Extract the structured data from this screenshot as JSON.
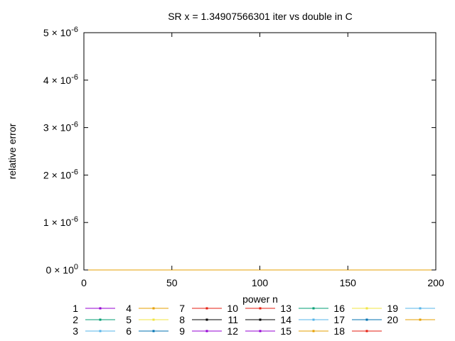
{
  "chart_data": {
    "type": "line",
    "title": "SR x = 1.34907566301 iter vs double in C",
    "xlabel": "power n",
    "ylabel": "relative error",
    "xlim": [
      0,
      200
    ],
    "ylim": [
      0,
      5e-06
    ],
    "x_ticks": [
      {
        "value": 0,
        "label": "0"
      },
      {
        "value": 50,
        "label": "50"
      },
      {
        "value": 100,
        "label": "100"
      },
      {
        "value": 150,
        "label": "150"
      },
      {
        "value": 200,
        "label": "200"
      }
    ],
    "y_ticks": [
      {
        "value": 0,
        "mant": "0 × 10",
        "exp": "0"
      },
      {
        "value": 1e-06,
        "mant": "1 × 10",
        "exp": "-6"
      },
      {
        "value": 2e-06,
        "mant": "2 × 10",
        "exp": "-6"
      },
      {
        "value": 3e-06,
        "mant": "3 × 10",
        "exp": "-6"
      },
      {
        "value": 4e-06,
        "mant": "4 × 10",
        "exp": "-6"
      },
      {
        "value": 5e-06,
        "mant": "5 × 10",
        "exp": "-6"
      }
    ],
    "grid": false,
    "legend_position": "below",
    "x": [
      0,
      200
    ],
    "series": [
      {
        "name": "1",
        "color": "#9400d3",
        "values": [
          0,
          0
        ]
      },
      {
        "name": "2",
        "color": "#009e73",
        "values": [
          0,
          0
        ]
      },
      {
        "name": "3",
        "color": "#56b4e9",
        "values": [
          0,
          0
        ]
      },
      {
        "name": "4",
        "color": "#e69f00",
        "values": [
          0,
          0
        ]
      },
      {
        "name": "5",
        "color": "#f0e442",
        "values": [
          0,
          0
        ]
      },
      {
        "name": "6",
        "color": "#0072b2",
        "values": [
          0,
          0
        ]
      },
      {
        "name": "7",
        "color": "#e51e10",
        "values": [
          0,
          0
        ]
      },
      {
        "name": "8",
        "color": "#000000",
        "values": [
          0,
          0
        ]
      },
      {
        "name": "9",
        "color": "#9400d3",
        "values": [
          0,
          0
        ]
      },
      {
        "name": "10",
        "color": "#e51e10",
        "values": [
          0,
          0
        ]
      },
      {
        "name": "11",
        "color": "#000000",
        "values": [
          0,
          0
        ]
      },
      {
        "name": "12",
        "color": "#9400d3",
        "values": [
          0,
          0
        ]
      },
      {
        "name": "13",
        "color": "#009e73",
        "values": [
          0,
          0
        ]
      },
      {
        "name": "14",
        "color": "#56b4e9",
        "values": [
          0,
          0
        ]
      },
      {
        "name": "15",
        "color": "#e69f00",
        "values": [
          0,
          0
        ]
      },
      {
        "name": "16",
        "color": "#f0e442",
        "values": [
          0,
          0
        ]
      },
      {
        "name": "17",
        "color": "#0072b2",
        "values": [
          0,
          0
        ]
      },
      {
        "name": "18",
        "color": "#e51e10",
        "values": [
          0,
          0
        ]
      },
      {
        "name": "19",
        "color": "#56b4e9",
        "values": [
          0,
          0
        ]
      },
      {
        "name": "20",
        "color": "#e69f00",
        "values": [
          0,
          0
        ]
      }
    ]
  }
}
